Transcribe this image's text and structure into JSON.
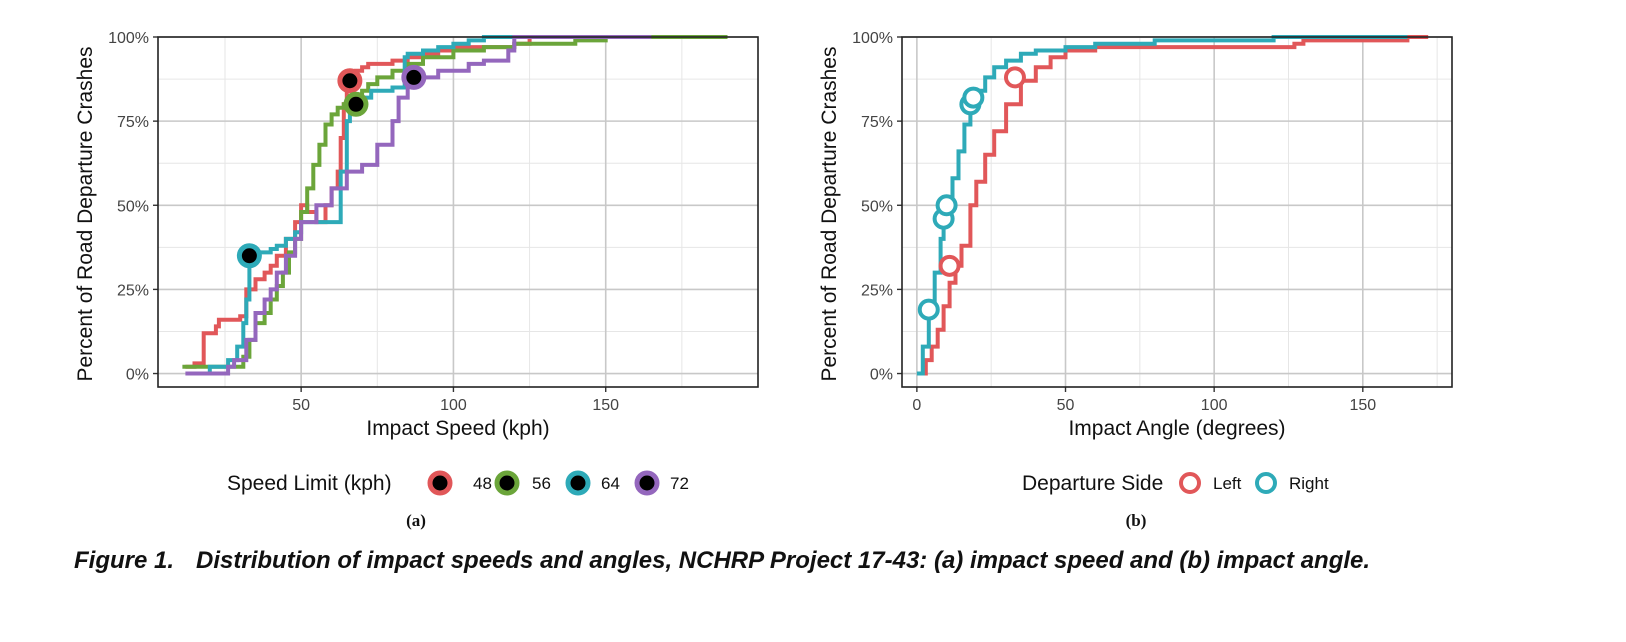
{
  "caption": {
    "number": "Figure 1.",
    "text": "Distribution of impact speeds and angles, NCHRP Project 17-43: (a) impact speed and (b) impact angle."
  },
  "chart_data": [
    {
      "type": "line",
      "step": true,
      "subcaption": "(a)",
      "xlabel": "Impact Speed (kph)",
      "ylabel": "Percent of Road Departure Crashes",
      "xlim": [
        3,
        200
      ],
      "ylim": [
        -4,
        100
      ],
      "xticks": [
        50,
        100,
        150
      ],
      "xtick_labels": [
        "50",
        "100",
        "150"
      ],
      "yticks": [
        0,
        25,
        50,
        75,
        100
      ],
      "ytick_labels": [
        "0%",
        "25%",
        "50%",
        "75%",
        "100%"
      ],
      "grid": true,
      "legend": {
        "title": "Speed Limit (kph)",
        "position": "bottom",
        "marker": "filled-ring"
      },
      "series": [
        {
          "name": "48",
          "color": "#E15759",
          "x": [
            12,
            15,
            17,
            18,
            22,
            23,
            25,
            30,
            32,
            35,
            38,
            40,
            42,
            45,
            48,
            50,
            52,
            55,
            58,
            60,
            62,
            63,
            64,
            65,
            66,
            68,
            70,
            72,
            75,
            80,
            85,
            90,
            95,
            100,
            110,
            120,
            125
          ],
          "y": [
            2,
            3,
            3,
            12,
            14,
            16,
            16,
            17,
            25,
            28,
            30,
            32,
            35,
            40,
            45,
            50,
            48,
            45,
            50,
            55,
            60,
            70,
            80,
            85,
            88,
            90,
            91,
            92,
            92,
            93,
            94,
            95,
            96,
            97,
            97,
            98,
            100
          ],
          "marker": {
            "x": 66,
            "y": 87
          }
        },
        {
          "name": "56",
          "color": "#6BA53A",
          "x": [
            11,
            20,
            28,
            31,
            33,
            35,
            38,
            40,
            42,
            44,
            46,
            48,
            50,
            52,
            54,
            56,
            58,
            60,
            62,
            64,
            66,
            68,
            70,
            72,
            75,
            80,
            85,
            90,
            100,
            110,
            120,
            140,
            150,
            160,
            170,
            180,
            190
          ],
          "y": [
            2,
            2,
            2,
            5,
            10,
            15,
            18,
            22,
            26,
            30,
            36,
            40,
            48,
            55,
            62,
            68,
            74,
            77,
            79,
            80,
            81,
            82,
            84,
            86,
            88,
            90,
            92,
            94,
            96,
            97,
            98,
            99,
            100,
            100,
            100,
            100,
            100
          ],
          "marker": {
            "x": 68,
            "y": 80
          }
        },
        {
          "name": "64",
          "color": "#2EAAB8",
          "x": [
            14,
            20,
            26,
            29,
            31,
            32,
            33,
            35,
            38,
            40,
            42,
            45,
            48,
            50,
            55,
            60,
            63,
            65,
            66,
            67,
            68,
            70,
            73,
            76,
            80,
            83,
            84,
            85,
            90,
            95,
            100,
            105,
            110,
            120,
            130
          ],
          "y": [
            0,
            2,
            4,
            8,
            15,
            22,
            35,
            36,
            36,
            37,
            38,
            40,
            42,
            45,
            45,
            45,
            60,
            75,
            78,
            80,
            82,
            82,
            84,
            84,
            85,
            85,
            94,
            95,
            96,
            97,
            98,
            99,
            100,
            100,
            100
          ],
          "marker": {
            "x": 33,
            "y": 35
          }
        },
        {
          "name": "72",
          "color": "#9467BD",
          "x": [
            12,
            22,
            26,
            28,
            32,
            35,
            38,
            40,
            42,
            45,
            48,
            50,
            55,
            60,
            65,
            70,
            75,
            80,
            82,
            85,
            88,
            90,
            95,
            100,
            105,
            110,
            115,
            118,
            120,
            130,
            140,
            150,
            160,
            165
          ],
          "y": [
            0,
            0,
            2,
            4,
            10,
            18,
            22,
            25,
            30,
            35,
            40,
            45,
            50,
            55,
            60,
            62,
            68,
            75,
            82,
            86,
            88,
            88,
            90,
            90,
            92,
            93,
            93,
            96,
            100,
            100,
            100,
            100,
            100,
            100
          ],
          "marker": {
            "x": 87,
            "y": 88
          }
        }
      ]
    },
    {
      "type": "line",
      "step": true,
      "subcaption": "(b)",
      "xlabel": "Impact Angle (degrees)",
      "ylabel": "Percent of Road Departure Crashes",
      "xlim": [
        -5,
        180
      ],
      "ylim": [
        -4,
        100
      ],
      "xticks": [
        0,
        50,
        100,
        150
      ],
      "xtick_labels": [
        "0",
        "50",
        "100",
        "150"
      ],
      "yticks": [
        0,
        25,
        50,
        75,
        100
      ],
      "ytick_labels": [
        "0%",
        "25%",
        "50%",
        "75%",
        "100%"
      ],
      "grid": true,
      "legend": {
        "title": "Departure Side",
        "position": "bottom",
        "marker": "open-ring"
      },
      "series": [
        {
          "name": "Left",
          "color": "#E15759",
          "x": [
            1,
            3,
            5,
            7,
            9,
            11,
            13,
            15,
            18,
            20,
            23,
            26,
            30,
            35,
            40,
            45,
            50,
            60,
            70,
            80,
            100,
            127,
            130,
            150,
            165,
            172
          ],
          "y": [
            0,
            4,
            8,
            13,
            20,
            27,
            32,
            38,
            50,
            57,
            65,
            72,
            80,
            87,
            91,
            94,
            96,
            97,
            97,
            97,
            97,
            98,
            99,
            99,
            100,
            100
          ],
          "marker_points": [
            {
              "x": 11,
              "y": 32
            },
            {
              "x": 33,
              "y": 88
            }
          ]
        },
        {
          "name": "Right",
          "color": "#2EAAB8",
          "x": [
            0,
            2,
            4,
            6,
            8,
            9,
            10,
            12,
            14,
            16,
            18,
            20,
            23,
            26,
            30,
            35,
            40,
            45,
            50,
            60,
            70,
            80,
            100,
            120,
            150,
            165
          ],
          "y": [
            0,
            8,
            19,
            30,
            40,
            46,
            50,
            58,
            66,
            74,
            80,
            84,
            88,
            91,
            93,
            95,
            96,
            96,
            97,
            98,
            98,
            99,
            99,
            100,
            100,
            100
          ],
          "marker_points": [
            {
              "x": 4,
              "y": 19
            },
            {
              "x": 9,
              "y": 46
            },
            {
              "x": 10,
              "y": 50
            },
            {
              "x": 18,
              "y": 80
            },
            {
              "x": 19,
              "y": 82
            }
          ]
        }
      ]
    }
  ]
}
